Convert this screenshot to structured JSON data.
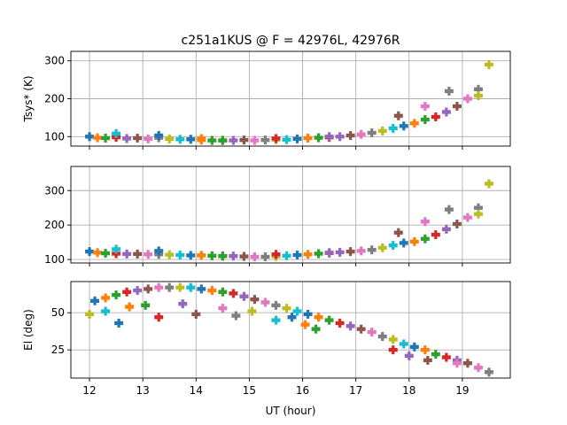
{
  "chart_data": {
    "type": "scatter",
    "title": "c251a1KUS @ F = 42976L, 42976R",
    "xlabel": "UT (hour)",
    "xlim": [
      11.65,
      19.9
    ],
    "xticks": [
      "12",
      "13",
      "14",
      "15",
      "16",
      "17",
      "18",
      "19"
    ],
    "palette": [
      "#1f77b4",
      "#ff7f0e",
      "#2ca02c",
      "#d62728",
      "#9467bd",
      "#8c564b",
      "#e377c2",
      "#7f7f7f",
      "#bcbd22",
      "#17becf"
    ],
    "panels": [
      {
        "name": "tsys-top",
        "ylabel": "Tsys* (K)",
        "ylim": [
          75,
          325
        ],
        "yticks": [
          "100",
          "200",
          "300"
        ],
        "series": [
          {
            "x": [
              12.0,
              12.15,
              12.3,
              12.5,
              12.7,
              12.9,
              13.1,
              13.3,
              13.5,
              13.7,
              13.9,
              14.1,
              14.3,
              14.5,
              14.7,
              14.9,
              15.1,
              15.3,
              15.5,
              15.7,
              15.9,
              16.1,
              16.3,
              16.5,
              16.7,
              16.9,
              17.1,
              17.3,
              17.5,
              17.7,
              17.9,
              18.1,
              18.3,
              18.5,
              18.7,
              18.9,
              19.1,
              19.3,
              19.5
            ],
            "y": [
              100,
              97,
              96,
              98,
              95,
              96,
              94,
              97,
              94,
              93,
              93,
              91,
              90,
              90,
              90,
              91,
              90,
              91,
              92,
              92,
              94,
              96,
              97,
              98,
              100,
              103,
              106,
              110,
              115,
              122,
              128,
              135,
              145,
              152,
              165,
              180,
              200,
              225,
              290
            ]
          },
          {
            "x": [
              12.5,
              13.3,
              14.1,
              14.5,
              15.5,
              16.5,
              17.8,
              18.3,
              18.75,
              19.3
            ],
            "y": [
              108,
              103,
              95,
              90,
              95,
              100,
              155,
              180,
              220,
              208
            ]
          }
        ]
      },
      {
        "name": "tsys-middle",
        "ylabel": "",
        "ylim": [
          90,
          370
        ],
        "yticks": [
          "100",
          "200",
          "300"
        ],
        "series": [
          {
            "x": [
              12.0,
              12.15,
              12.3,
              12.5,
              12.7,
              12.9,
              13.1,
              13.3,
              13.5,
              13.7,
              13.9,
              14.1,
              14.3,
              14.5,
              14.7,
              14.9,
              15.1,
              15.3,
              15.5,
              15.7,
              15.9,
              16.1,
              16.3,
              16.5,
              16.7,
              16.9,
              17.1,
              17.3,
              17.5,
              17.7,
              17.9,
              18.1,
              18.3,
              18.5,
              18.7,
              18.9,
              19.1,
              19.3,
              19.5
            ],
            "y": [
              123,
              120,
              118,
              117,
              116,
              116,
              115,
              115,
              114,
              113,
              112,
              112,
              111,
              110,
              110,
              109,
              108,
              108,
              109,
              111,
              113,
              115,
              117,
              119,
              121,
              123,
              125,
              128,
              134,
              141,
              148,
              152,
              160,
              172,
              188,
              203,
              222,
              250,
              320
            ]
          },
          {
            "x": [
              12.5,
              13.3,
              14.1,
              14.5,
              15.5,
              16.5,
              17.8,
              18.3,
              18.75,
              19.3
            ],
            "y": [
              130,
              125,
              112,
              110,
              115,
              120,
              178,
              210,
              245,
              232
            ]
          }
        ]
      },
      {
        "name": "elevation",
        "ylabel": "El (deg)",
        "ylim": [
          6,
          71
        ],
        "yticks": [
          "25",
          "50"
        ],
        "series": [
          {
            "x": [
              12.1,
              12.3,
              12.5,
              12.7,
              12.9,
              13.1,
              13.3,
              13.5,
              13.7,
              13.9,
              14.1,
              14.3,
              14.5,
              14.7,
              14.9,
              15.1,
              15.3,
              15.5,
              15.7,
              15.9,
              16.1,
              16.3,
              16.5,
              16.7,
              16.9,
              17.1,
              17.3,
              17.5,
              17.7,
              17.9,
              18.1,
              18.3,
              18.5,
              18.7,
              18.9,
              19.1,
              19.3,
              19.5
            ],
            "y": [
              58,
              60,
              62,
              64,
              65,
              66,
              67,
              67,
              67,
              67,
              66,
              65,
              64,
              63,
              61,
              59,
              57,
              55,
              53,
              51,
              49,
              47,
              45,
              43,
              41,
              39,
              37,
              34,
              32,
              29,
              27,
              25,
              22,
              20,
              18,
              16,
              13,
              10
            ]
          },
          {
            "x": [
              12.0,
              12.3,
              12.55,
              12.75,
              13.05,
              13.3,
              13.75,
              14.0,
              14.5,
              14.75,
              15.05,
              15.5,
              15.8,
              16.05,
              16.25,
              17.7,
              18.0,
              18.35,
              18.9
            ],
            "y": [
              49,
              51,
              43,
              54,
              55,
              47,
              56,
              49,
              53,
              48,
              51,
              45,
              47,
              42,
              39,
              25,
              21,
              18,
              16
            ]
          }
        ]
      }
    ]
  }
}
